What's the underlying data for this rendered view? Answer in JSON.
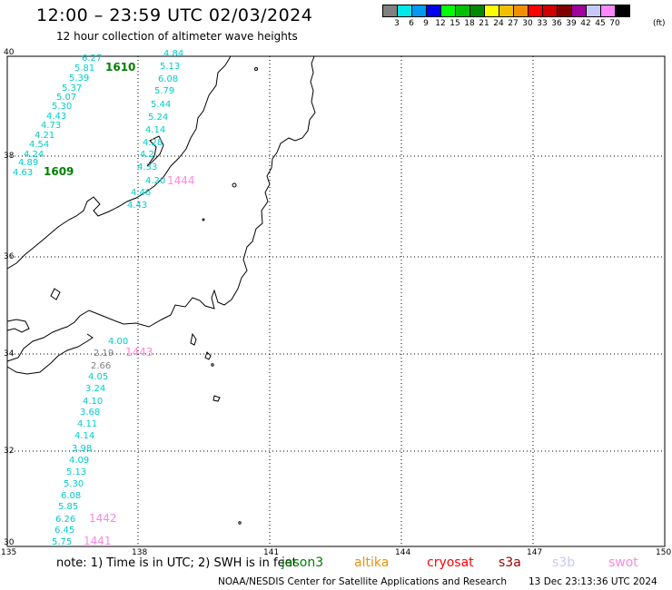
{
  "header": {
    "title": "12:00 – 23:59 UTC 02/03/2024",
    "subtitle": "12 hour collection of altimeter wave heights"
  },
  "colorbar": {
    "colors": [
      "#808080",
      "#00e8e8",
      "#0098f0",
      "#0000f0",
      "#00ff00",
      "#00c000",
      "#008800",
      "#ffff00",
      "#f0c000",
      "#f09000",
      "#ff0000",
      "#d00000",
      "#800000",
      "#a000a0",
      "#c8c8f8",
      "#ff88ff",
      "#000000"
    ],
    "labels": [
      "3",
      "6",
      "9",
      "12",
      "15",
      "18",
      "21",
      "24",
      "27",
      "30",
      "33",
      "36",
      "39",
      "42",
      "45",
      "70"
    ],
    "unit": "(ft)"
  },
  "axes": {
    "lat_labels": [
      "40",
      "38",
      "36",
      "34",
      "32",
      "30"
    ],
    "lon_labels": [
      "135",
      "138",
      "141",
      "144",
      "147",
      "150"
    ]
  },
  "tracks": {
    "track_1610": {
      "label": "1610",
      "color": "#008000",
      "values": [
        "6.27",
        "5.81",
        "5.39",
        "5.37",
        "5.07",
        "5.30",
        "4.43",
        "4.73",
        "4.21",
        "4.54",
        "4.24",
        "4.89",
        "4.63"
      ]
    },
    "track_1609": {
      "label": "1609",
      "color": "#008000"
    },
    "track_1444": {
      "label": "1444",
      "color": "#ff88dd",
      "values": [
        "4.84",
        "5.13",
        "6.08",
        "5.79",
        "5.44",
        "5.24",
        "4.14",
        "4.28",
        "4.2",
        "4.33",
        "4.20",
        "4.46",
        "4.43"
      ]
    },
    "track_1443": {
      "label": "1443",
      "color": "#ff88dd",
      "values": [
        "4.00",
        "2.19",
        "2.66",
        "4.05",
        "3.24",
        "4.10",
        "3.68",
        "4.11",
        "4.14",
        "3.98",
        "4.09",
        "5.13",
        "5.30",
        "6.08",
        "5.85",
        "6.26",
        "6.45",
        "5.75"
      ]
    },
    "track_1442": {
      "label": "1442",
      "color": "#ff88dd"
    },
    "track_1441": {
      "label": "1441",
      "color": "#ff88dd"
    }
  },
  "footer": {
    "note": "note:  1) Time is in UTC; 2) SWH is in feet",
    "legend": [
      {
        "name": "jason3",
        "color": "#008000"
      },
      {
        "name": "altika",
        "color": "#f09000"
      },
      {
        "name": "cryosat",
        "color": "#ff0000"
      },
      {
        "name": "s3a",
        "color": "#a00000"
      },
      {
        "name": "s3b",
        "color": "#c8c8f8"
      },
      {
        "name": "swot",
        "color": "#ff88dd"
      }
    ],
    "credit": "NOAA/NESDIS Center for Satellite Applications and Research",
    "timestamp": "13 Dec 23:13:36 UTC 2024"
  }
}
